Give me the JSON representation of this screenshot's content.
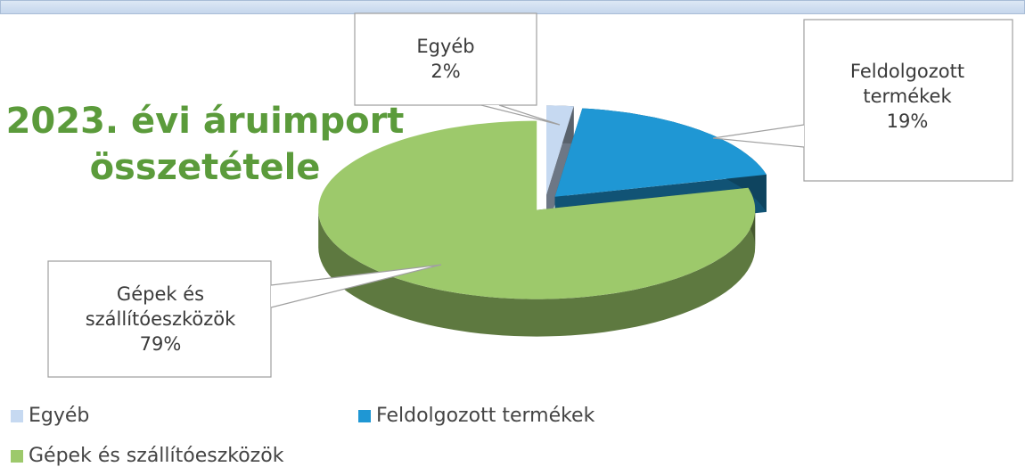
{
  "chart_data": {
    "type": "pie3d",
    "title": "2023. évi áruimport összetétele",
    "categories": [
      "Egyéb",
      "Feldolgozott termékek",
      "Gépek és szállítóeszközök"
    ],
    "values": [
      2,
      19,
      79
    ],
    "value_labels": [
      "2%",
      "19%",
      "79%"
    ],
    "colors": [
      "#c6d9f1",
      "#1f97d4",
      "#9dc96b"
    ],
    "legend": "bottom"
  }
}
